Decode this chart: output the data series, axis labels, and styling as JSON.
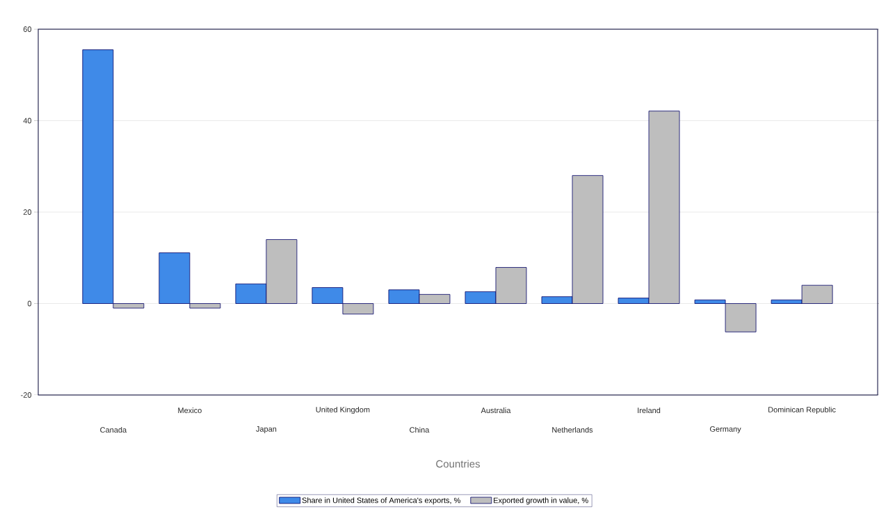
{
  "chart_data": {
    "type": "bar",
    "xlabel": "Countries",
    "categories": [
      "Canada",
      "Mexico",
      "Japan",
      "United Kingdom",
      "China",
      "Australia",
      "Netherlands",
      "Ireland",
      "Germany",
      "Dominican Republic"
    ],
    "series": [
      {
        "name": "Share in United States of America's exports, %",
        "color": "#3f8ae8",
        "values": [
          55.5,
          11.1,
          4.3,
          3.5,
          3.0,
          2.6,
          1.5,
          1.2,
          0.8,
          0.8
        ]
      },
      {
        "name": "Exported growth in value, %",
        "color": "#bebebe",
        "values": [
          -1.0,
          -1.0,
          14.0,
          -2.3,
          2.0,
          7.9,
          28.0,
          42.1,
          -6.2,
          4.0
        ]
      }
    ],
    "ylim": [
      -20,
      60
    ],
    "yticks": [
      -20,
      0,
      20,
      40,
      60
    ],
    "grid": "y",
    "legend": "bottom"
  }
}
